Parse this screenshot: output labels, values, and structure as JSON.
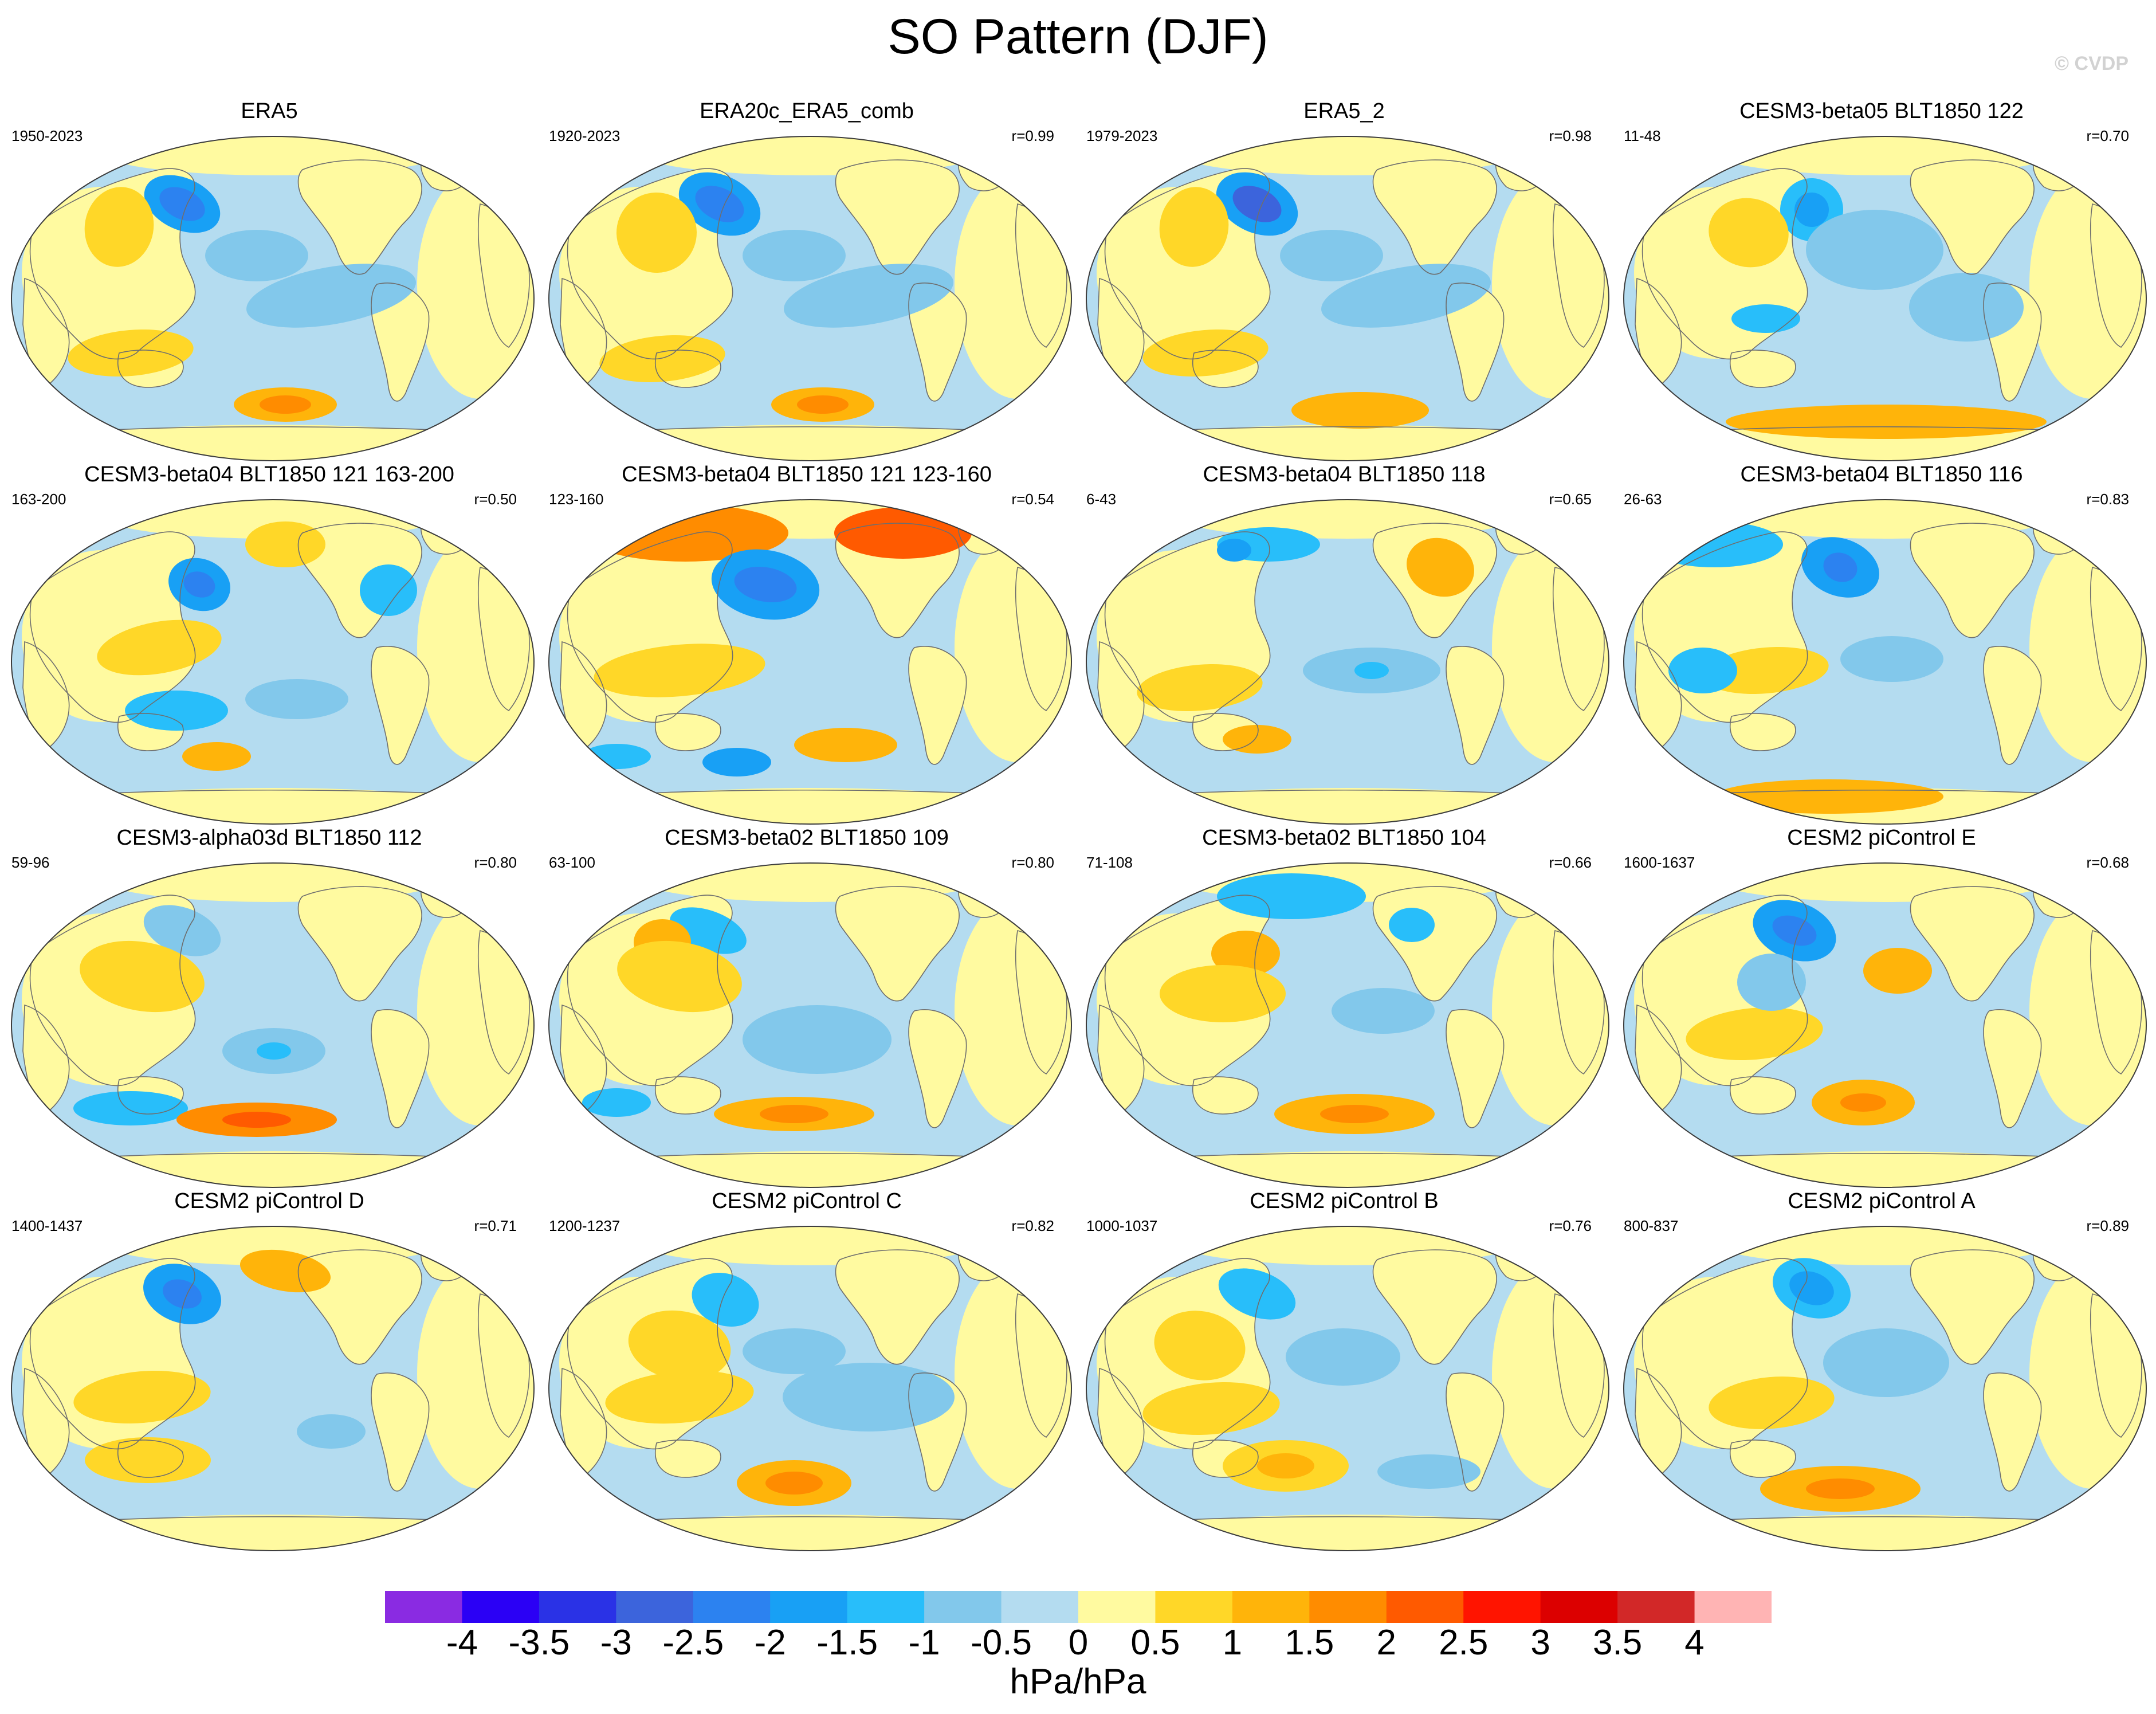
{
  "figure": {
    "title": "SO Pattern (DJF)",
    "watermark": "© CVDP",
    "units": "hPa/hPa"
  },
  "panels": [
    {
      "title": "ERA5",
      "period": "1950-2023",
      "r": ""
    },
    {
      "title": "ERA20c_ERA5_comb",
      "period": "1920-2023",
      "r": "r=0.99"
    },
    {
      "title": "ERA5_2",
      "period": "1979-2023",
      "r": "r=0.98"
    },
    {
      "title": "CESM3-beta05 BLT1850 122",
      "period": "11-48",
      "r": "r=0.70"
    },
    {
      "title": "CESM3-beta04 BLT1850 121 163-200",
      "period": "163-200",
      "r": "r=0.50"
    },
    {
      "title": "CESM3-beta04 BLT1850 121 123-160",
      "period": "123-160",
      "r": "r=0.54"
    },
    {
      "title": "CESM3-beta04 BLT1850 118",
      "period": "6-43",
      "r": "r=0.65"
    },
    {
      "title": "CESM3-beta04 BLT1850 116",
      "period": "26-63",
      "r": "r=0.83"
    },
    {
      "title": "CESM3-alpha03d BLT1850 112",
      "period": "59-96",
      "r": "r=0.80"
    },
    {
      "title": "CESM3-beta02 BLT1850 109",
      "period": "63-100",
      "r": "r=0.80"
    },
    {
      "title": "CESM3-beta02 BLT1850 104",
      "period": "71-108",
      "r": "r=0.66"
    },
    {
      "title": "CESM2 piControl E",
      "period": "1600-1637",
      "r": "r=0.68"
    },
    {
      "title": "CESM2 piControl D",
      "period": "1400-1437",
      "r": "r=0.71"
    },
    {
      "title": "CESM2 piControl C",
      "period": "1200-1237",
      "r": "r=0.82"
    },
    {
      "title": "CESM2 piControl B",
      "period": "1000-1037",
      "r": "r=0.76"
    },
    {
      "title": "CESM2 piControl A",
      "period": "800-837",
      "r": "r=0.89"
    }
  ],
  "colorbar": {
    "labels": [
      "-4",
      "-3.5",
      "-3",
      "-2.5",
      "-2",
      "-1.5",
      "-1",
      "-0.5",
      "0",
      "0.5",
      "1",
      "1.5",
      "2",
      "2.5",
      "3",
      "3.5",
      "4"
    ],
    "colors": [
      "#8a2be2",
      "#2b00f5",
      "#2a32e6",
      "#3c64dc",
      "#2c82f0",
      "#18a0f5",
      "#28befa",
      "#82c8eb",
      "#b4dcf0",
      "#fffaa0",
      "#ffd728",
      "#ffb40a",
      "#ff8c00",
      "#ff5a00",
      "#ff1400",
      "#dc0000",
      "#d22828",
      "#ffb4b4"
    ]
  },
  "palette": {
    "ocean_base": "#b4dcf0",
    "land_base": "#fffaa0",
    "coast": "#6e6e6e",
    "outline": "#3c3c3c"
  }
}
